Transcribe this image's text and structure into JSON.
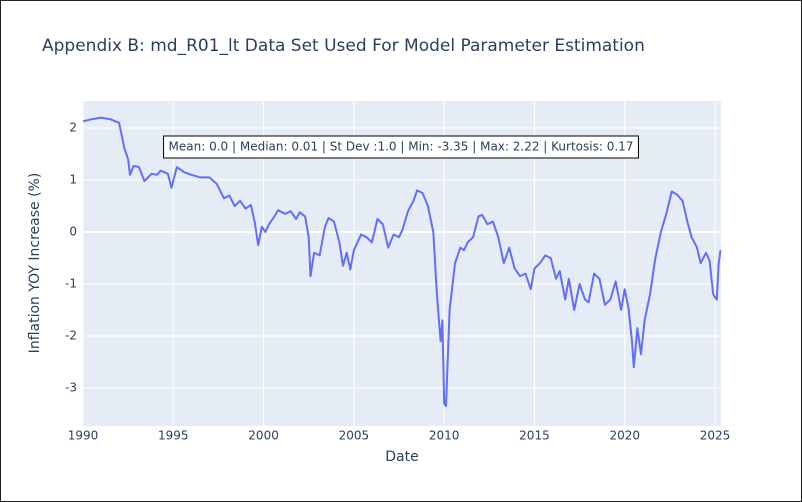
{
  "chart_data": {
    "type": "line",
    "title": "Appendix B: md_R01_lt Data Set Used For Model Parameter Estimation",
    "x_label": "Date",
    "y_label": "Inflation YOY Increase (%)",
    "annotation": "Mean: 0.0 | Median: 0.01 | St Dev :1.0 | Min: -3.35 | Max: 2.22 | Kurtosis: 0.17",
    "xlim": [
      1990,
      2025.33
    ],
    "xticks": [
      1990,
      1995,
      2000,
      2005,
      2010,
      2015,
      2020,
      2025
    ],
    "ylim": [
      -3.73,
      2.52
    ],
    "yticks": [
      -3,
      -2,
      -1,
      0,
      1,
      2
    ],
    "grid": true,
    "series": [
      {
        "color": "#636efa",
        "x": [
          1990.0,
          1990.5,
          1991.0,
          1991.5,
          1992.0,
          1992.3,
          1992.5,
          1992.6,
          1992.8,
          1993.1,
          1993.4,
          1993.8,
          1994.1,
          1994.3,
          1994.7,
          1994.9,
          1995.2,
          1995.6,
          1996.0,
          1996.5,
          1997.0,
          1997.4,
          1997.8,
          1998.1,
          1998.4,
          1998.7,
          1999.0,
          1999.3,
          1999.5,
          1999.7,
          1999.9,
          2000.1,
          2000.3,
          2000.6,
          2000.8,
          2001.2,
          2001.5,
          2001.8,
          2002.0,
          2002.3,
          2002.5,
          2002.6,
          2002.8,
          2003.1,
          2003.4,
          2003.6,
          2003.9,
          2004.2,
          2004.4,
          2004.6,
          2004.8,
          2005.0,
          2005.4,
          2005.7,
          2006.0,
          2006.3,
          2006.6,
          2006.9,
          2007.2,
          2007.5,
          2007.7,
          2008.0,
          2008.3,
          2008.5,
          2008.8,
          2009.1,
          2009.4,
          2009.6,
          2009.8,
          2009.9,
          2010.0,
          2010.1,
          2010.3,
          2010.6,
          2010.9,
          2011.1,
          2011.3,
          2011.6,
          2011.9,
          2012.1,
          2012.4,
          2012.7,
          2013.0,
          2013.3,
          2013.6,
          2013.9,
          2014.2,
          2014.5,
          2014.8,
          2015.0,
          2015.3,
          2015.6,
          2015.9,
          2016.2,
          2016.4,
          2016.7,
          2016.9,
          2017.2,
          2017.5,
          2017.8,
          2018.0,
          2018.3,
          2018.6,
          2018.9,
          2019.2,
          2019.5,
          2019.8,
          2020.0,
          2020.2,
          2020.4,
          2020.5,
          2020.7,
          2020.9,
          2021.1,
          2021.4,
          2021.7,
          2022.0,
          2022.3,
          2022.6,
          2022.9,
          2023.2,
          2023.5,
          2023.7,
          2024.0,
          2024.2,
          2024.5,
          2024.7,
          2024.9,
          2025.1,
          2025.2,
          2025.3
        ],
        "values": [
          2.13,
          2.17,
          2.2,
          2.17,
          2.1,
          1.6,
          1.4,
          1.1,
          1.27,
          1.25,
          0.98,
          1.12,
          1.1,
          1.18,
          1.12,
          0.85,
          1.25,
          1.15,
          1.1,
          1.05,
          1.05,
          0.93,
          0.65,
          0.7,
          0.5,
          0.6,
          0.45,
          0.52,
          0.2,
          -0.25,
          0.1,
          0.0,
          0.15,
          0.3,
          0.42,
          0.35,
          0.4,
          0.25,
          0.38,
          0.3,
          -0.1,
          -0.85,
          -0.4,
          -0.45,
          0.1,
          0.27,
          0.2,
          -0.2,
          -0.65,
          -0.4,
          -0.72,
          -0.35,
          -0.05,
          -0.1,
          -0.2,
          0.25,
          0.15,
          -0.3,
          -0.05,
          -0.1,
          0.05,
          0.4,
          0.6,
          0.8,
          0.75,
          0.5,
          0.0,
          -1.2,
          -2.1,
          -1.7,
          -3.3,
          -3.35,
          -1.5,
          -0.6,
          -0.3,
          -0.35,
          -0.2,
          -0.1,
          0.3,
          0.33,
          0.15,
          0.2,
          -0.1,
          -0.6,
          -0.3,
          -0.7,
          -0.85,
          -0.8,
          -1.1,
          -0.7,
          -0.6,
          -0.45,
          -0.5,
          -0.9,
          -0.75,
          -1.3,
          -0.9,
          -1.5,
          -1.0,
          -1.3,
          -1.35,
          -0.8,
          -0.9,
          -1.4,
          -1.3,
          -0.95,
          -1.5,
          -1.1,
          -1.45,
          -2.1,
          -2.6,
          -1.85,
          -2.35,
          -1.7,
          -1.2,
          -0.5,
          0.0,
          0.35,
          0.78,
          0.72,
          0.6,
          0.15,
          -0.1,
          -0.3,
          -0.6,
          -0.4,
          -0.55,
          -1.2,
          -1.3,
          -0.6,
          -0.35
        ]
      }
    ]
  }
}
